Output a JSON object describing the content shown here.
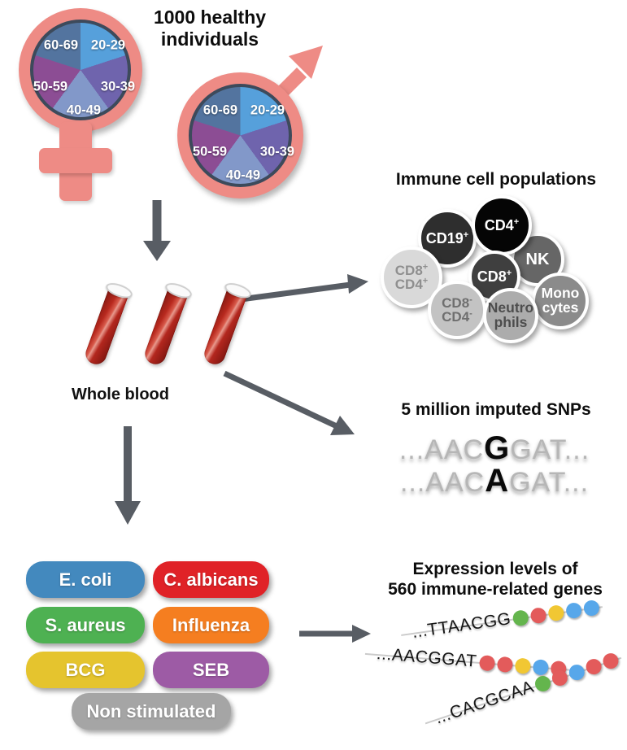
{
  "title": "1000 healthy individuals",
  "demographics": {
    "age_groups": [
      "20-29",
      "30-39",
      "40-49",
      "50-59",
      "60-69"
    ],
    "slice_colors": [
      "#56A0DB",
      "#6F64AD",
      "#8298C9",
      "#8C4D94",
      "#53749F"
    ],
    "pie_border_color": "#3D4A5B",
    "symbol_color": "#EE8B85",
    "symbols": [
      "female",
      "male"
    ]
  },
  "whole_blood": {
    "label": "Whole blood"
  },
  "immune_cells": {
    "title": "Immune cell populations",
    "cells": [
      {
        "lines": [
          {
            "text": "CD19",
            "sup": "+"
          }
        ],
        "bg": "#2E2E2E",
        "fg": "#FFFFFF"
      },
      {
        "lines": [
          {
            "text": "NK",
            "sup": ""
          }
        ],
        "bg": "#666666",
        "fg": "#FFFFFF"
      },
      {
        "lines": [
          {
            "text": "CD4",
            "sup": "+"
          }
        ],
        "bg": "#050505",
        "fg": "#FFFFFF"
      },
      {
        "lines": [
          {
            "text": "CD8",
            "sup": "+"
          }
        ],
        "bg": "#3F3F3F",
        "fg": "#FFFFFF"
      },
      {
        "lines": [
          {
            "text": "CD8",
            "sup": "+"
          },
          {
            "text": "CD4",
            "sup": "+"
          }
        ],
        "bg": "#D9D9D9",
        "fg": "#8F8F8F"
      },
      {
        "lines": [
          {
            "text": "Mono",
            "sup": ""
          },
          {
            "text": "cytes",
            "sup": ""
          }
        ],
        "bg": "#8B8B8B",
        "fg": "#FFFFFF"
      },
      {
        "lines": [
          {
            "text": "CD8",
            "sup": "-"
          },
          {
            "text": "CD4",
            "sup": "-"
          }
        ],
        "bg": "#C3C3C3",
        "fg": "#6F6F6F"
      },
      {
        "lines": [
          {
            "text": "Neutro",
            "sup": ""
          },
          {
            "text": "phils",
            "sup": ""
          }
        ],
        "bg": "#ACACAC",
        "fg": "#4D4D4D"
      }
    ]
  },
  "snps": {
    "title": "5 million imputed SNPs",
    "rows": [
      {
        "pre": "...AAC",
        "variant": "G",
        "post": "GAT..."
      },
      {
        "pre": "...AAC",
        "variant": "A",
        "post": "GAT..."
      }
    ]
  },
  "stimulations": {
    "items": [
      {
        "label": "E. coli",
        "color": "#4389BE"
      },
      {
        "label": "C. albicans",
        "color": "#E02227"
      },
      {
        "label": "S. aureus",
        "color": "#4EB152"
      },
      {
        "label": "Influenza",
        "color": "#F57E20"
      },
      {
        "label": "BCG",
        "color": "#E5C42E"
      },
      {
        "label": "SEB",
        "color": "#9D5BA5"
      },
      {
        "label": "Non stimulated",
        "color": "#A5A5A5"
      }
    ]
  },
  "expression": {
    "title_line1": "Expression levels of",
    "title_line2": "560 immune-related genes",
    "strands": [
      {
        "sequence": "...TTAACGG",
        "dots": [
          "green",
          "red",
          "yellow",
          "blue",
          "blue"
        ]
      },
      {
        "sequence": "...AACGGAT",
        "dots": [
          "red",
          "red",
          "yellow",
          "blue",
          "red"
        ]
      },
      {
        "sequence": "...CACGCAA",
        "dots": [
          "green",
          "red",
          "blue",
          "red",
          "red"
        ]
      }
    ],
    "dot_colors": {
      "green": "#64B54D",
      "red": "#E35B5B",
      "yellow": "#F1C733",
      "blue": "#57A7EA"
    }
  },
  "arrow_color": "#585D64"
}
